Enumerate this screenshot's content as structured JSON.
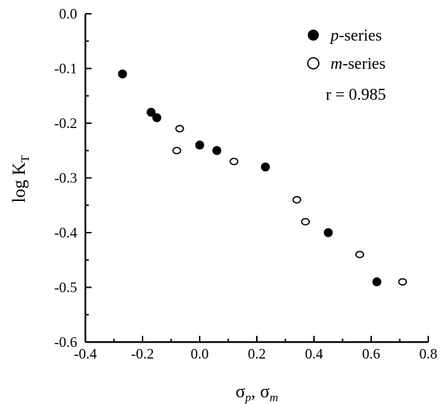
{
  "chart_data": {
    "type": "scatter",
    "xlabel": {
      "main": "σ",
      "sub1": "p",
      "sep": ", ",
      "main2": "σ",
      "sub2": "m"
    },
    "ylabel": {
      "main": "log K",
      "sub": "T"
    },
    "xlim": [
      -0.4,
      0.8
    ],
    "ylim": [
      -0.6,
      0.0
    ],
    "xticks": [
      "-0.4",
      "-0.2",
      "0.0",
      "0.2",
      "0.4",
      "0.6",
      "0.8"
    ],
    "yticks": [
      "0.0",
      "-0.1",
      "-0.2",
      "-0.3",
      "-0.4",
      "-0.5",
      "-0.6"
    ],
    "xtick_values": [
      -0.4,
      -0.2,
      0.0,
      0.2,
      0.4,
      0.6,
      0.8
    ],
    "ytick_values": [
      0.0,
      -0.1,
      -0.2,
      -0.3,
      -0.4,
      -0.5,
      -0.6
    ],
    "series": [
      {
        "name_italic": "p",
        "name_rest": "-series",
        "marker": "filled",
        "points": [
          [
            -0.27,
            -0.11
          ],
          [
            -0.17,
            -0.18
          ],
          [
            -0.15,
            -0.19
          ],
          [
            0.0,
            -0.24
          ],
          [
            0.06,
            -0.25
          ],
          [
            0.23,
            -0.28
          ],
          [
            0.45,
            -0.4
          ],
          [
            0.62,
            -0.49
          ]
        ]
      },
      {
        "name_italic": "m",
        "name_rest": "-series",
        "marker": "open",
        "points": [
          [
            -0.07,
            -0.21
          ],
          [
            -0.08,
            -0.25
          ],
          [
            0.12,
            -0.27
          ],
          [
            0.34,
            -0.34
          ],
          [
            0.37,
            -0.38
          ],
          [
            0.56,
            -0.44
          ],
          [
            0.71,
            -0.49
          ]
        ]
      }
    ],
    "annotation": "r = 0.985",
    "grid": false,
    "legend_position": "top-right"
  }
}
